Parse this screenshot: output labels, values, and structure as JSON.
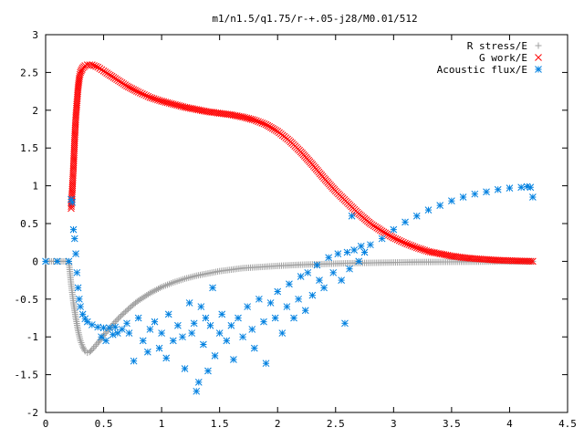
{
  "chart_data": {
    "type": "scatter",
    "title": "m1/n1.5/q1.75/r-+.05-j28/M0.01/512",
    "xlabel": "",
    "ylabel": "",
    "xlim": [
      0,
      4.5
    ],
    "ylim": [
      -2,
      3
    ],
    "x_ticks": [
      "0",
      "0.5",
      "1",
      "1.5",
      "2",
      "2.5",
      "3",
      "3.5",
      "4",
      "4.5"
    ],
    "y_ticks": [
      "-2",
      "-1.5",
      "-1",
      "-0.5",
      "0",
      "0.5",
      "1",
      "1.5",
      "2",
      "2.5",
      "3"
    ],
    "grid": false,
    "legend_position": "top-right",
    "series": [
      {
        "name": "R stress/E",
        "marker": "plus",
        "color": "#a0a0a0",
        "points": [
          [
            0.0,
            0.0
          ],
          [
            0.1,
            0.0
          ],
          [
            0.2,
            0.0
          ],
          [
            0.22,
            -0.3
          ],
          [
            0.24,
            -0.55
          ],
          [
            0.26,
            -0.75
          ],
          [
            0.28,
            -0.92
          ],
          [
            0.3,
            -1.05
          ],
          [
            0.32,
            -1.13
          ],
          [
            0.34,
            -1.19
          ],
          [
            0.36,
            -1.21
          ],
          [
            0.38,
            -1.2
          ],
          [
            0.4,
            -1.17
          ],
          [
            0.45,
            -1.08
          ],
          [
            0.5,
            -0.98
          ],
          [
            0.55,
            -0.89
          ],
          [
            0.6,
            -0.8
          ],
          [
            0.65,
            -0.72
          ],
          [
            0.7,
            -0.65
          ],
          [
            0.75,
            -0.58
          ],
          [
            0.8,
            -0.52
          ],
          [
            0.9,
            -0.42
          ],
          [
            1.0,
            -0.34
          ],
          [
            1.1,
            -0.28
          ],
          [
            1.2,
            -0.23
          ],
          [
            1.3,
            -0.19
          ],
          [
            1.4,
            -0.16
          ],
          [
            1.5,
            -0.13
          ],
          [
            1.6,
            -0.11
          ],
          [
            1.7,
            -0.09
          ],
          [
            1.8,
            -0.08
          ],
          [
            1.9,
            -0.07
          ],
          [
            2.0,
            -0.06
          ],
          [
            2.2,
            -0.045
          ],
          [
            2.4,
            -0.035
          ],
          [
            2.6,
            -0.025
          ],
          [
            2.8,
            -0.02
          ],
          [
            3.0,
            -0.015
          ],
          [
            3.2,
            -0.01
          ],
          [
            3.4,
            -0.008
          ],
          [
            3.6,
            -0.006
          ],
          [
            3.8,
            -0.004
          ],
          [
            4.0,
            -0.002
          ],
          [
            4.2,
            0.0
          ]
        ]
      },
      {
        "name": "G work/E",
        "marker": "cross",
        "color": "#ff0000",
        "points": [
          [
            0.22,
            0.7
          ],
          [
            0.23,
            0.95
          ],
          [
            0.24,
            1.25
          ],
          [
            0.25,
            1.6
          ],
          [
            0.26,
            1.9
          ],
          [
            0.27,
            2.1
          ],
          [
            0.28,
            2.3
          ],
          [
            0.29,
            2.42
          ],
          [
            0.3,
            2.5
          ],
          [
            0.32,
            2.56
          ],
          [
            0.34,
            2.59
          ],
          [
            0.36,
            2.6
          ],
          [
            0.4,
            2.6
          ],
          [
            0.45,
            2.57
          ],
          [
            0.5,
            2.52
          ],
          [
            0.6,
            2.42
          ],
          [
            0.7,
            2.32
          ],
          [
            0.8,
            2.24
          ],
          [
            0.9,
            2.17
          ],
          [
            1.0,
            2.12
          ],
          [
            1.1,
            2.08
          ],
          [
            1.2,
            2.04
          ],
          [
            1.3,
            2.01
          ],
          [
            1.4,
            1.98
          ],
          [
            1.5,
            1.96
          ],
          [
            1.6,
            1.94
          ],
          [
            1.7,
            1.91
          ],
          [
            1.8,
            1.87
          ],
          [
            1.9,
            1.81
          ],
          [
            2.0,
            1.72
          ],
          [
            2.1,
            1.6
          ],
          [
            2.2,
            1.45
          ],
          [
            2.3,
            1.28
          ],
          [
            2.4,
            1.1
          ],
          [
            2.5,
            0.93
          ],
          [
            2.6,
            0.78
          ],
          [
            2.7,
            0.63
          ],
          [
            2.8,
            0.5
          ],
          [
            2.9,
            0.4
          ],
          [
            3.0,
            0.31
          ],
          [
            3.1,
            0.24
          ],
          [
            3.2,
            0.18
          ],
          [
            3.3,
            0.13
          ],
          [
            3.4,
            0.1
          ],
          [
            3.5,
            0.07
          ],
          [
            3.6,
            0.05
          ],
          [
            3.7,
            0.035
          ],
          [
            3.8,
            0.025
          ],
          [
            3.9,
            0.015
          ],
          [
            4.0,
            0.01
          ],
          [
            4.1,
            0.005
          ],
          [
            4.2,
            0.0
          ]
        ]
      },
      {
        "name": "Acoustic flux/E",
        "marker": "star",
        "color": "#0080e0",
        "points": [
          [
            0.0,
            0.0
          ],
          [
            0.1,
            0.0
          ],
          [
            0.2,
            0.0
          ],
          [
            0.22,
            0.82
          ],
          [
            0.23,
            0.78
          ],
          [
            0.24,
            0.42
          ],
          [
            0.25,
            0.3
          ],
          [
            0.26,
            0.1
          ],
          [
            0.27,
            -0.15
          ],
          [
            0.28,
            -0.35
          ],
          [
            0.29,
            -0.5
          ],
          [
            0.3,
            -0.6
          ],
          [
            0.32,
            -0.7
          ],
          [
            0.34,
            -0.76
          ],
          [
            0.36,
            -0.8
          ],
          [
            0.4,
            -0.84
          ],
          [
            0.45,
            -0.87
          ],
          [
            0.5,
            -0.88
          ],
          [
            0.55,
            -0.88
          ],
          [
            0.6,
            -0.87
          ],
          [
            0.48,
            -1.0
          ],
          [
            0.52,
            -1.05
          ],
          [
            0.58,
            -0.97
          ],
          [
            0.62,
            -0.95
          ],
          [
            0.66,
            -0.9
          ],
          [
            0.7,
            -0.82
          ],
          [
            0.72,
            -0.95
          ],
          [
            0.76,
            -1.32
          ],
          [
            0.8,
            -0.75
          ],
          [
            0.84,
            -1.05
          ],
          [
            0.88,
            -1.2
          ],
          [
            0.9,
            -0.9
          ],
          [
            0.94,
            -0.8
          ],
          [
            0.98,
            -1.15
          ],
          [
            1.0,
            -0.95
          ],
          [
            1.04,
            -1.28
          ],
          [
            1.06,
            -0.7
          ],
          [
            1.1,
            -1.05
          ],
          [
            1.14,
            -0.85
          ],
          [
            1.18,
            -1.0
          ],
          [
            1.2,
            -1.42
          ],
          [
            1.24,
            -0.55
          ],
          [
            1.26,
            -0.95
          ],
          [
            1.28,
            -0.82
          ],
          [
            1.3,
            -1.72
          ],
          [
            1.32,
            -1.6
          ],
          [
            1.34,
            -0.6
          ],
          [
            1.36,
            -1.1
          ],
          [
            1.38,
            -0.75
          ],
          [
            1.4,
            -1.45
          ],
          [
            1.42,
            -0.85
          ],
          [
            1.44,
            -0.35
          ],
          [
            1.46,
            -1.25
          ],
          [
            1.5,
            -0.95
          ],
          [
            1.52,
            -0.7
          ],
          [
            1.56,
            -1.05
          ],
          [
            1.6,
            -0.85
          ],
          [
            1.62,
            -1.3
          ],
          [
            1.66,
            -0.75
          ],
          [
            1.7,
            -1.0
          ],
          [
            1.74,
            -0.6
          ],
          [
            1.78,
            -0.9
          ],
          [
            1.8,
            -1.15
          ],
          [
            1.84,
            -0.5
          ],
          [
            1.88,
            -0.8
          ],
          [
            1.9,
            -1.35
          ],
          [
            1.94,
            -0.55
          ],
          [
            1.98,
            -0.75
          ],
          [
            2.0,
            -0.4
          ],
          [
            2.04,
            -0.95
          ],
          [
            2.08,
            -0.6
          ],
          [
            2.1,
            -0.3
          ],
          [
            2.14,
            -0.75
          ],
          [
            2.18,
            -0.5
          ],
          [
            2.2,
            -0.2
          ],
          [
            2.24,
            -0.65
          ],
          [
            2.26,
            -0.15
          ],
          [
            2.3,
            -0.45
          ],
          [
            2.34,
            -0.05
          ],
          [
            2.36,
            -0.25
          ],
          [
            2.4,
            -0.35
          ],
          [
            2.44,
            0.05
          ],
          [
            2.48,
            -0.15
          ],
          [
            2.52,
            0.1
          ],
          [
            2.55,
            -0.25
          ],
          [
            2.58,
            -0.82
          ],
          [
            2.6,
            0.12
          ],
          [
            2.62,
            -0.1
          ],
          [
            2.64,
            0.6
          ],
          [
            2.66,
            0.15
          ],
          [
            2.7,
            0.0
          ],
          [
            2.72,
            0.2
          ],
          [
            2.75,
            0.12
          ],
          [
            2.8,
            0.22
          ],
          [
            2.9,
            0.3
          ],
          [
            3.0,
            0.42
          ],
          [
            3.1,
            0.52
          ],
          [
            3.2,
            0.6
          ],
          [
            3.3,
            0.68
          ],
          [
            3.4,
            0.74
          ],
          [
            3.5,
            0.8
          ],
          [
            3.6,
            0.85
          ],
          [
            3.7,
            0.89
          ],
          [
            3.8,
            0.92
          ],
          [
            3.9,
            0.95
          ],
          [
            4.0,
            0.97
          ],
          [
            4.1,
            0.98
          ],
          [
            4.15,
            0.99
          ],
          [
            4.18,
            0.98
          ],
          [
            4.2,
            0.85
          ]
        ]
      }
    ]
  }
}
